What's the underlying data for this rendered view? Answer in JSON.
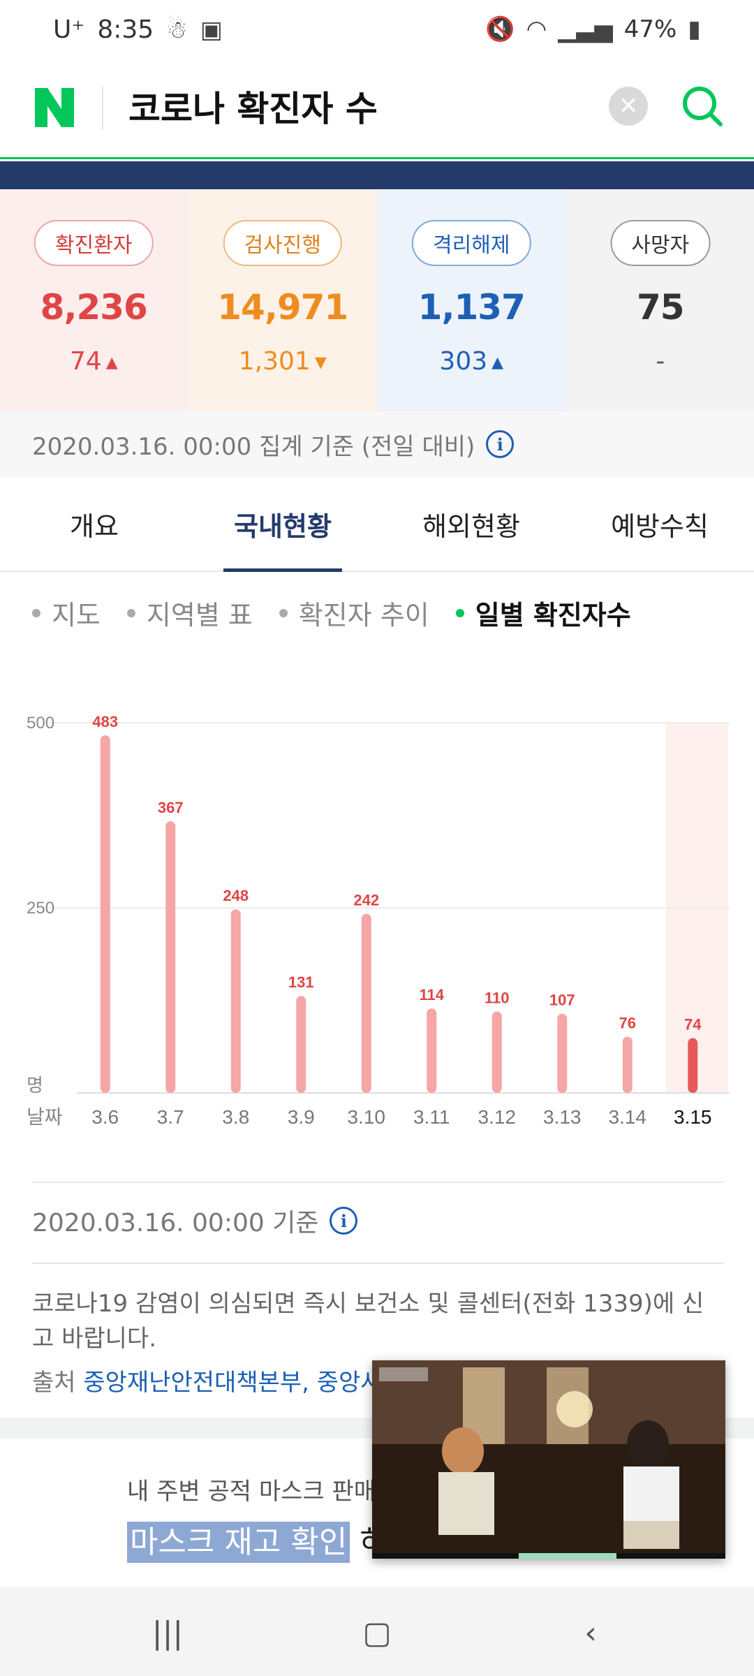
{
  "status_bar": {
    "carrier": "U⁺",
    "time": "8:35",
    "battery": "47%"
  },
  "header": {
    "query": "코로나 확진자 수"
  },
  "stats": [
    {
      "label": "확진환자",
      "value": "8,236",
      "change": "74",
      "dir": "up"
    },
    {
      "label": "검사진행",
      "value": "14,971",
      "change": "1,301",
      "dir": "down"
    },
    {
      "label": "격리해제",
      "value": "1,137",
      "change": "303",
      "dir": "up"
    },
    {
      "label": "사망자",
      "value": "75",
      "change": "-",
      "dir": "none"
    }
  ],
  "basis_text": "2020.03.16. 00:00 집계 기준 (전일 대비)",
  "tabs": [
    "개요",
    "국내현황",
    "해외현황",
    "예방수칙"
  ],
  "subtabs": [
    "지도",
    "지역별 표",
    "확진자 추이",
    "일별 확진자수"
  ],
  "chart_data": {
    "type": "bar",
    "categories": [
      "3.6",
      "3.7",
      "3.8",
      "3.9",
      "3.10",
      "3.11",
      "3.12",
      "3.13",
      "3.14",
      "3.15"
    ],
    "values": [
      483,
      367,
      248,
      131,
      242,
      114,
      110,
      107,
      76,
      74
    ],
    "yticks": [
      "500",
      "250"
    ],
    "ylabel": "명",
    "xlabel": "날짜",
    "ylim": [
      0,
      500
    ],
    "bar_color": "#f6a6a6",
    "highlight_color": "#e85a5a",
    "highlight_index": 9
  },
  "footer": {
    "basis": "2020.03.16. 00:00 기준",
    "notice": "코로나19 감염이 의심되면 즉시 보건소 및 콜센터(전화 1339)에 신고 바랍니다.",
    "source_label": "출처",
    "source_links": "중앙재난안전대책본부, 중앙사"
  },
  "mask_card": {
    "subtitle": "내 주변 공적 마스크 판매",
    "highlight": "마스크 재고 확인",
    "after": "하"
  },
  "colors": {
    "naver_green": "#03c75a",
    "navy": "#233a6b",
    "red": "#e04545",
    "orange": "#ee8c1f",
    "blue": "#1c5fb5"
  }
}
